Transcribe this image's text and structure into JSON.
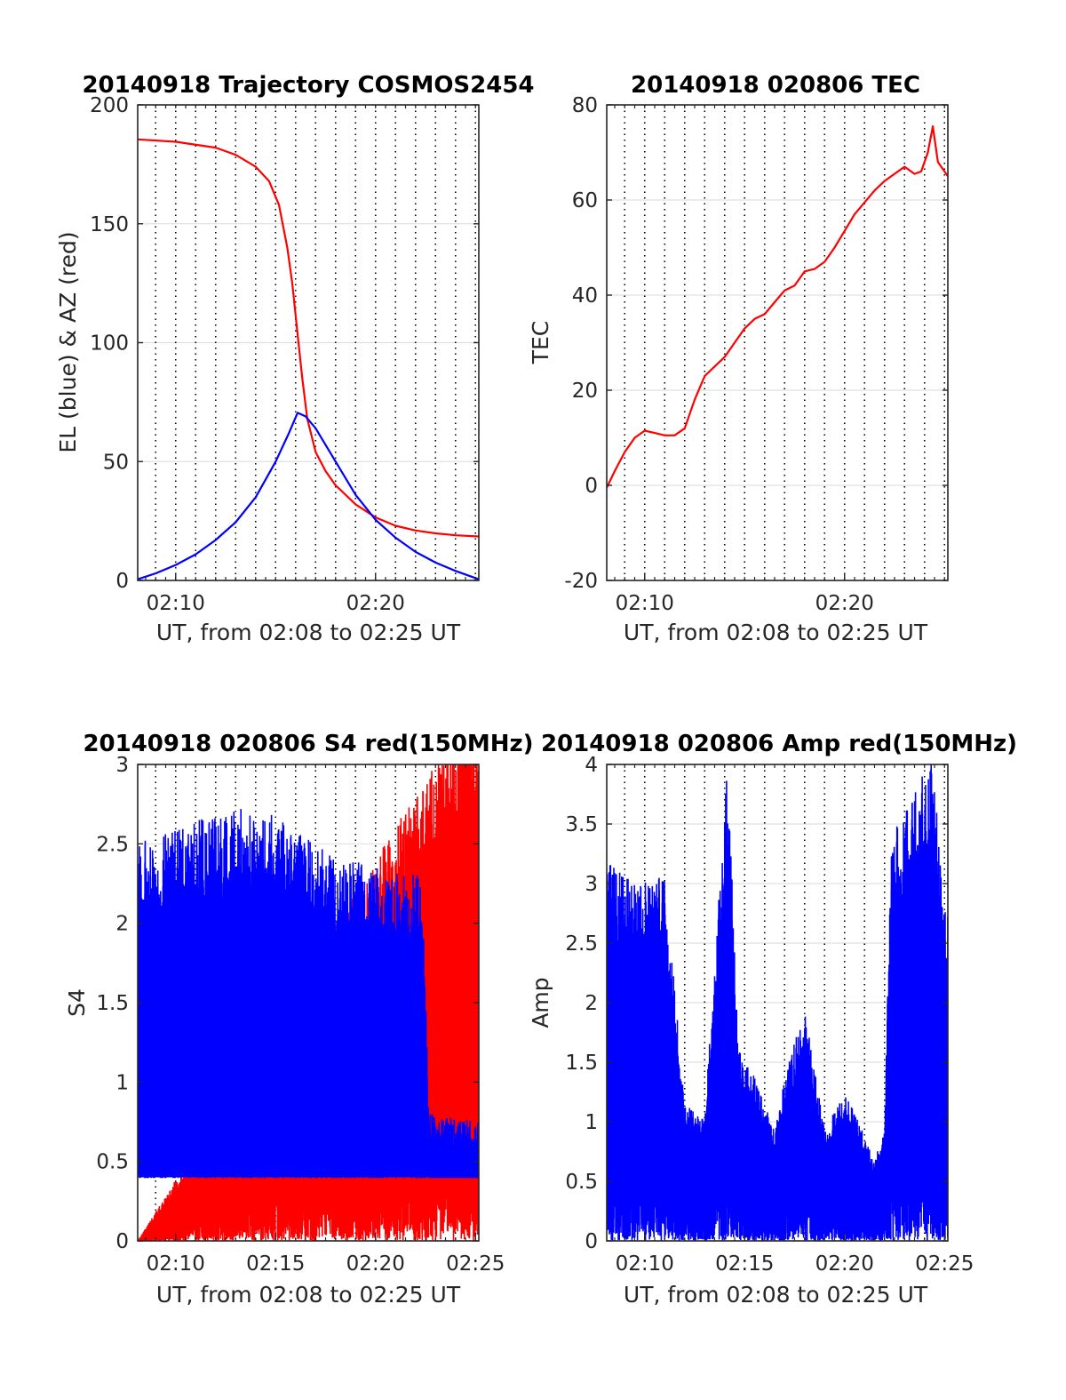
{
  "chart_data": [
    {
      "id": "traj",
      "type": "line",
      "title": "20140918 Trajectory COSMOS2454",
      "xlabel": "UT, from 02:08 to 02:25 UT",
      "ylabel": "EL (blue) & AZ (red)",
      "xlim": [
        "02:08:06",
        "02:25:10"
      ],
      "ylim": [
        0,
        200
      ],
      "xticks": [
        {
          "t": "02:10:00",
          "label": "02:10"
        },
        {
          "t": "02:20:00",
          "label": "02:20"
        }
      ],
      "yticks": [
        0,
        50,
        100,
        150,
        200
      ],
      "ytick_labels": [
        "0",
        "50",
        "100",
        "150",
        "200"
      ],
      "grid": "horizontal",
      "series": [
        {
          "color": "#ff0000",
          "points": [
            [
              "02:08:06",
              185.5
            ],
            [
              "02:10:00",
              184.5
            ],
            [
              "02:12:00",
              182
            ],
            [
              "02:13:00",
              179
            ],
            [
              "02:14:00",
              174
            ],
            [
              "02:14:40",
              168
            ],
            [
              "02:15:10",
              158
            ],
            [
              "02:15:35",
              140
            ],
            [
              "02:15:50",
              125
            ],
            [
              "02:16:05",
              105
            ],
            [
              "02:16:20",
              85
            ],
            [
              "02:16:35",
              68
            ],
            [
              "02:17:00",
              54
            ],
            [
              "02:17:30",
              46
            ],
            [
              "02:18:00",
              40
            ],
            [
              "02:19:00",
              32
            ],
            [
              "02:20:00",
              26.5
            ],
            [
              "02:21:00",
              23
            ],
            [
              "02:22:00",
              21
            ],
            [
              "02:23:00",
              19.8
            ],
            [
              "02:24:00",
              19
            ],
            [
              "02:25:10",
              18.5
            ]
          ]
        },
        {
          "color": "#0000ff",
          "points": [
            [
              "02:08:06",
              0.5
            ],
            [
              "02:09:00",
              3
            ],
            [
              "02:10:00",
              6.5
            ],
            [
              "02:11:00",
              11
            ],
            [
              "02:12:00",
              17
            ],
            [
              "02:13:00",
              24.5
            ],
            [
              "02:14:00",
              35
            ],
            [
              "02:15:00",
              50
            ],
            [
              "02:15:40",
              62
            ],
            [
              "02:16:06",
              70.5
            ],
            [
              "02:16:30",
              69
            ],
            [
              "02:17:00",
              64
            ],
            [
              "02:18:00",
              50
            ],
            [
              "02:19:00",
              36
            ],
            [
              "02:20:00",
              25.5
            ],
            [
              "02:21:00",
              18
            ],
            [
              "02:22:00",
              12
            ],
            [
              "02:23:00",
              7.5
            ],
            [
              "02:24:00",
              4
            ],
            [
              "02:25:10",
              0.5
            ]
          ]
        }
      ]
    },
    {
      "id": "tec",
      "type": "line",
      "title": "20140918 020806 TEC",
      "xlabel": "UT, from 02:08 to 02:25 UT",
      "ylabel": "TEC",
      "xlim": [
        "02:08:06",
        "02:25:10"
      ],
      "ylim": [
        -20,
        80
      ],
      "xticks": [
        {
          "t": "02:10:00",
          "label": "02:10"
        },
        {
          "t": "02:20:00",
          "label": "02:20"
        }
      ],
      "yticks": [
        -20,
        0,
        20,
        40,
        60,
        80
      ],
      "ytick_labels": [
        "-20",
        "0",
        "20",
        "40",
        "60",
        "80"
      ],
      "grid": "horizontal",
      "series": [
        {
          "color": "#ff0000",
          "points": [
            [
              "02:08:06",
              -0.5
            ],
            [
              "02:08:30",
              3
            ],
            [
              "02:09:00",
              7
            ],
            [
              "02:09:30",
              10
            ],
            [
              "02:10:00",
              11.5
            ],
            [
              "02:10:30",
              11
            ],
            [
              "02:11:00",
              10.5
            ],
            [
              "02:11:30",
              10.5
            ],
            [
              "02:12:00",
              12
            ],
            [
              "02:12:30",
              18
            ],
            [
              "02:13:00",
              23
            ],
            [
              "02:13:30",
              25
            ],
            [
              "02:14:00",
              27
            ],
            [
              "02:14:30",
              30
            ],
            [
              "02:15:00",
              33
            ],
            [
              "02:15:30",
              35
            ],
            [
              "02:16:00",
              36
            ],
            [
              "02:16:30",
              38.5
            ],
            [
              "02:17:00",
              41
            ],
            [
              "02:17:30",
              42
            ],
            [
              "02:18:00",
              45
            ],
            [
              "02:18:30",
              45.5
            ],
            [
              "02:19:00",
              47
            ],
            [
              "02:19:30",
              50
            ],
            [
              "02:20:00",
              53.5
            ],
            [
              "02:20:30",
              57
            ],
            [
              "02:21:00",
              59.5
            ],
            [
              "02:21:30",
              62
            ],
            [
              "02:22:00",
              64
            ],
            [
              "02:22:30",
              65.5
            ],
            [
              "02:23:00",
              67
            ],
            [
              "02:23:30",
              65.5
            ],
            [
              "02:23:50",
              66
            ],
            [
              "02:24:10",
              70
            ],
            [
              "02:24:25",
              75.5
            ],
            [
              "02:24:40",
              68
            ],
            [
              "02:25:10",
              65
            ]
          ]
        }
      ]
    },
    {
      "id": "s4",
      "type": "line",
      "title": "20140918 020806 S4 red(150MHz)",
      "xlabel": "UT, from 02:08 to 02:25 UT",
      "ylabel": "S4",
      "xlim": [
        "02:08:06",
        "02:25:10"
      ],
      "ylim": [
        0,
        3
      ],
      "xticks": [
        {
          "t": "02:10:00",
          "label": "02:10"
        },
        {
          "t": "02:15:00",
          "label": "02:15"
        },
        {
          "t": "02:20:00",
          "label": "02:20"
        },
        {
          "t": "02:25:00",
          "label": "02:25"
        }
      ],
      "yticks": [
        0,
        0.5,
        1,
        1.5,
        2,
        2.5,
        3
      ],
      "ytick_labels": [
        "0",
        "0.5",
        "1",
        "1.5",
        "2",
        "2.5",
        "3"
      ],
      "grid": "horizontal",
      "series": [
        {
          "color": "#ff0000",
          "noise": {
            "seed": 3,
            "lo": 0,
            "hi": 3,
            "step": 0.09
          },
          "envelope": [
            [
              "02:08:06",
              0.0
            ],
            [
              "02:25:10",
              3.0
            ]
          ]
        },
        {
          "color": "#0000ff",
          "noise": {
            "seed": 7,
            "lo": 0.4,
            "hi": 3,
            "step": 0.1
          },
          "envelope": [
            [
              "02:08:06",
              2.2
            ],
            [
              "02:14:00",
              2.4
            ],
            [
              "02:18:00",
              2.1
            ],
            [
              "02:22:20",
              2.0
            ],
            [
              "02:22:40",
              0.7
            ],
            [
              "02:25:10",
              0.65
            ]
          ]
        }
      ]
    },
    {
      "id": "amp",
      "type": "line",
      "title": "20140918 020806 Amp red(150MHz)",
      "xlabel": "UT, from 02:08 to 02:25 UT",
      "ylabel": "Amp",
      "xlim": [
        "02:08:06",
        "02:25:10"
      ],
      "ylim": [
        0,
        4
      ],
      "xticks": [
        {
          "t": "02:10:00",
          "label": "02:10"
        },
        {
          "t": "02:15:00",
          "label": "02:15"
        },
        {
          "t": "02:20:00",
          "label": "02:20"
        },
        {
          "t": "02:25:00",
          "label": "02:25"
        }
      ],
      "yticks": [
        0,
        0.5,
        1,
        1.5,
        2,
        2.5,
        3,
        3.5,
        4
      ],
      "ytick_labels": [
        "0",
        "0.5",
        "1",
        "1.5",
        "2",
        "2.5",
        "3",
        "3.5",
        "4"
      ],
      "grid": "horizontal",
      "series": [
        {
          "color": "#0000ff",
          "noise": {
            "seed": 11,
            "lo": 0,
            "hi": 4,
            "step": 0.09
          },
          "envelope": [
            [
              "02:08:06",
              2.8
            ],
            [
              "02:09:30",
              2.6
            ],
            [
              "02:11:00",
              2.7
            ],
            [
              "02:12:00",
              1.0
            ],
            [
              "02:13:00",
              0.9
            ],
            [
              "02:13:40",
              2.4
            ],
            [
              "02:14:10",
              3.55
            ],
            [
              "02:14:40",
              1.4
            ],
            [
              "02:15:30",
              1.2
            ],
            [
              "02:16:30",
              0.8
            ],
            [
              "02:17:00",
              1.2
            ],
            [
              "02:18:00",
              1.7
            ],
            [
              "02:19:00",
              0.8
            ],
            [
              "02:20:00",
              1.1
            ],
            [
              "02:21:30",
              0.6
            ],
            [
              "02:22:00",
              0.8
            ],
            [
              "02:22:20",
              3.0
            ],
            [
              "02:23:30",
              3.3
            ],
            [
              "02:24:20",
              3.5
            ],
            [
              "02:25:10",
              2.4
            ]
          ]
        }
      ]
    }
  ]
}
